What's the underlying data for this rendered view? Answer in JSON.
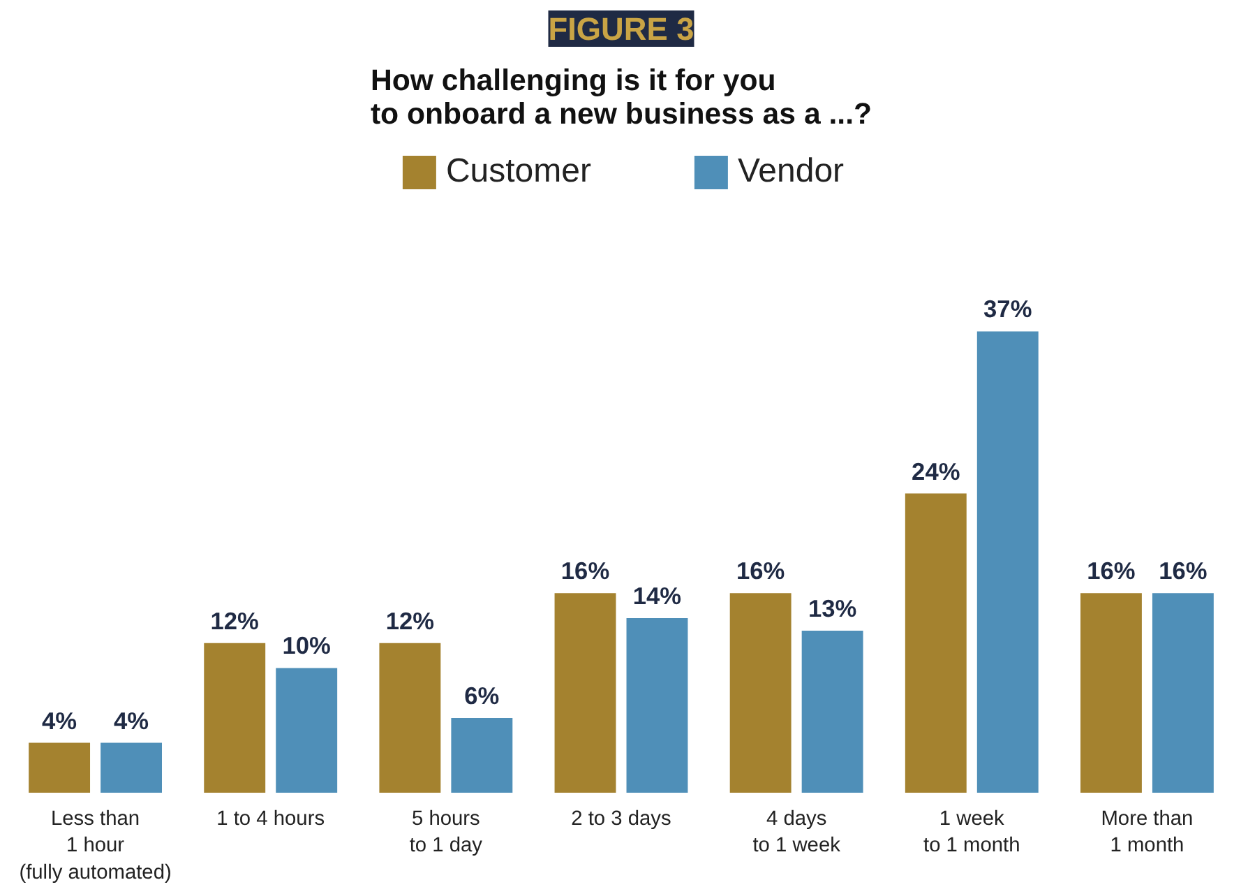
{
  "chart_data": {
    "type": "bar",
    "title": "FIGURE 3",
    "subtitle": "How challenging is it for you\nto onboard a new business as a ...?",
    "categories": [
      "Less than\n1 hour\n(fully automated)",
      "1 to 4 hours",
      "5 hours\nto 1 day",
      "2 to 3 days",
      "4 days\nto 1 week",
      "1 week\nto 1 month",
      "More than\n1 month"
    ],
    "series": [
      {
        "name": "Customer",
        "color": "#a4822f",
        "values": [
          4,
          12,
          12,
          16,
          16,
          24,
          16
        ],
        "value_labels": [
          "4%",
          "12%",
          "12%",
          "16%",
          "16%",
          "24%",
          "16%"
        ]
      },
      {
        "name": "Vendor",
        "color": "#4f8fb8",
        "values": [
          4,
          10,
          6,
          14,
          13,
          37,
          16
        ],
        "value_labels": [
          "4%",
          "10%",
          "6%",
          "14%",
          "13%",
          "37%",
          "16%"
        ]
      }
    ],
    "legend": "top"
  }
}
